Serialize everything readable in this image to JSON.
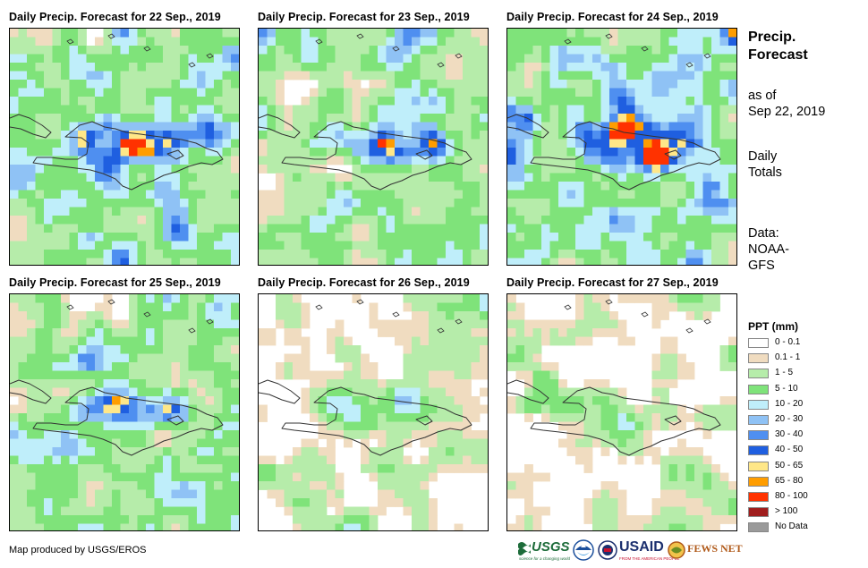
{
  "panels": [
    {
      "title": "Daily Precip. Forecast for 22 Sep., 2019",
      "seed": 22
    },
    {
      "title": "Daily Precip. Forecast for 23 Sep., 2019",
      "seed": 23
    },
    {
      "title": "Daily Precip. Forecast for 24 Sep., 2019",
      "seed": 24
    },
    {
      "title": "Daily Precip. Forecast for 25 Sep., 2019",
      "seed": 25
    },
    {
      "title": "Daily Precip. Forecast for 26 Sep., 2019",
      "seed": 26
    },
    {
      "title": "Daily Precip. Forecast for 27 Sep., 2019",
      "seed": 27
    }
  ],
  "sidebar": {
    "title_line1": "Precip.",
    "title_line2": "Forecast",
    "asof_line1": "as of",
    "asof_line2": "Sep 22, 2019",
    "totals_line1": "Daily",
    "totals_line2": "Totals",
    "source_line1": "Data:",
    "source_line2": "NOAA-",
    "source_line3": "GFS"
  },
  "legend": {
    "title": "PPT (mm)",
    "classes": [
      {
        "label": "0 - 0.1",
        "color": "#ffffff"
      },
      {
        "label": "0.1 - 1",
        "color": "#f0dcc0"
      },
      {
        "label": "1 - 5",
        "color": "#b6ecaa"
      },
      {
        "label": "5 - 10",
        "color": "#7fe37a"
      },
      {
        "label": "10 - 20",
        "color": "#bfeefa"
      },
      {
        "label": "20 - 30",
        "color": "#8fc2f5"
      },
      {
        "label": "30 - 40",
        "color": "#4f8ff0"
      },
      {
        "label": "40 - 50",
        "color": "#1f5fe0"
      },
      {
        "label": "50 - 65",
        "color": "#ffe788"
      },
      {
        "label": "65 - 80",
        "color": "#ff9d00"
      },
      {
        "label": "80 - 100",
        "color": "#ff3200"
      },
      {
        "label": "> 100",
        "color": "#a01e1e"
      },
      {
        "label": "No Data",
        "color": "#9a9a9a"
      }
    ]
  },
  "credit": "Map produced by USGS/EROS",
  "logos": {
    "usgs": "USGS",
    "usgs_tagline": "science for a changing world",
    "usaid": "USAID",
    "usaid_tagline": "FROM THE AMERICAN PEOPLE",
    "fewsnet": "FEWS NET"
  }
}
